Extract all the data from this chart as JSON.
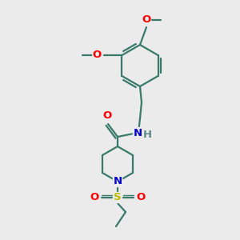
{
  "bg_color": "#ebebeb",
  "bond_color": "#3a7a6a",
  "bond_width": 1.6,
  "atom_colors": {
    "O": "#ff0000",
    "N": "#0000cc",
    "S": "#bbbb00",
    "H": "#5a8a8a",
    "C": "#3a7a6a"
  },
  "font_size": 9.5,
  "fig_size": [
    3.0,
    3.0
  ],
  "dpi": 100
}
